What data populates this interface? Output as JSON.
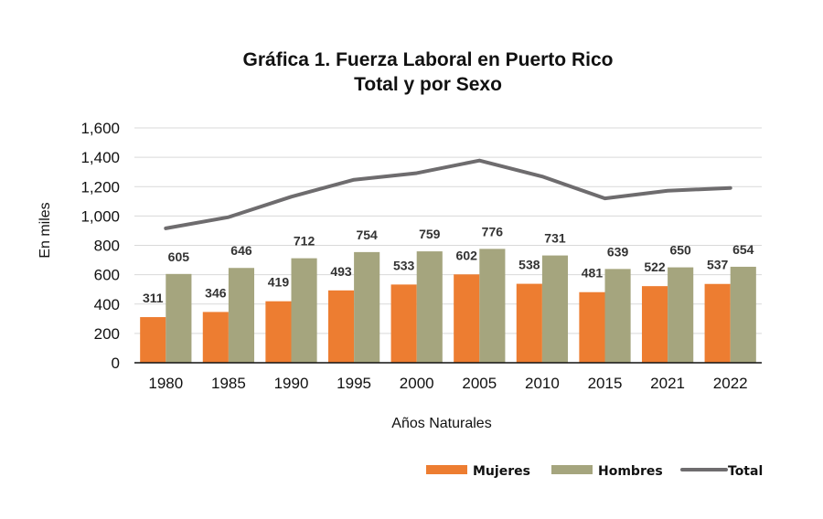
{
  "chart_data": {
    "type": "bar",
    "title": "Gráfica 1. Fuerza Laboral en Puerto Rico",
    "subtitle": "Total y por Sexo",
    "xlabel": "Años Naturales",
    "ylabel": "En miles",
    "ylim": [
      0,
      1600
    ],
    "yticks": [
      0,
      200,
      400,
      600,
      800,
      1000,
      1200,
      1400,
      1600
    ],
    "ytick_labels": [
      "0",
      "200",
      "400",
      "600",
      "800",
      "1,000",
      "1,200",
      "1,400",
      "1,600"
    ],
    "grid": true,
    "legend_position": "bottom-right",
    "categories": [
      "1980",
      "1985",
      "1990",
      "1995",
      "2000",
      "2005",
      "2010",
      "2015",
      "2021",
      "2022"
    ],
    "series": [
      {
        "name": "Mujeres",
        "type": "bar",
        "color": "#ED7D31",
        "values": [
          311,
          346,
          419,
          493,
          533,
          602,
          538,
          481,
          522,
          537
        ]
      },
      {
        "name": "Hombres",
        "type": "bar",
        "color": "#A5A57E",
        "values": [
          605,
          646,
          712,
          754,
          759,
          776,
          731,
          639,
          650,
          654
        ]
      },
      {
        "name": "Total",
        "type": "line",
        "color": "#6E6C6E",
        "values": [
          916,
          992,
          1131,
          1247,
          1292,
          1378,
          1269,
          1120,
          1172,
          1191
        ]
      }
    ]
  }
}
